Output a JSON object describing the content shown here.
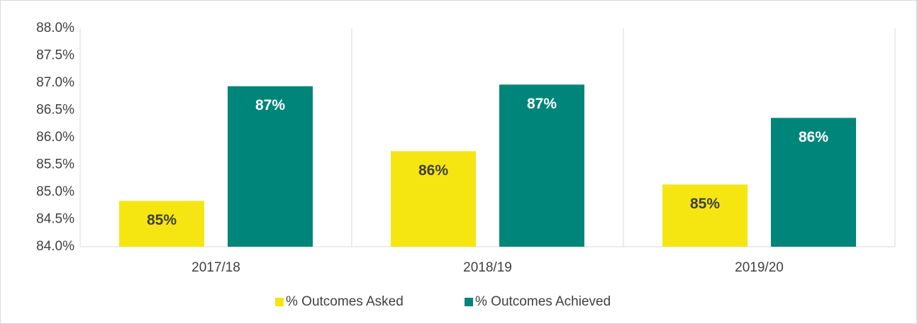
{
  "chart_data": {
    "type": "bar",
    "categories": [
      "2017/18",
      "2018/19",
      "2019/20"
    ],
    "series": [
      {
        "name": "% Outcomes Asked",
        "color": "#f5e612",
        "values": [
          84.84,
          85.75,
          85.14
        ],
        "value_labels": [
          "85%",
          "86%",
          "85%"
        ]
      },
      {
        "name": "% Outcomes Achieved",
        "color": "#00857a",
        "values": [
          86.94,
          86.97,
          86.36
        ],
        "value_labels": [
          "87%",
          "87%",
          "86%"
        ]
      }
    ],
    "ylim": [
      84,
      88
    ],
    "yticks": [
      {
        "value": 84,
        "label": "84.0%"
      },
      {
        "value": 84.5,
        "label": "84.5%"
      },
      {
        "value": 85,
        "label": "85.0%"
      },
      {
        "value": 85.5,
        "label": "85.5%"
      },
      {
        "value": 86,
        "label": "86.0%"
      },
      {
        "value": 86.5,
        "label": "86.5%"
      },
      {
        "value": 87,
        "label": "87.0%"
      },
      {
        "value": 87.5,
        "label": "87.5%"
      },
      {
        "value": 88,
        "label": "88.0%"
      }
    ],
    "legend": "bottom"
  }
}
